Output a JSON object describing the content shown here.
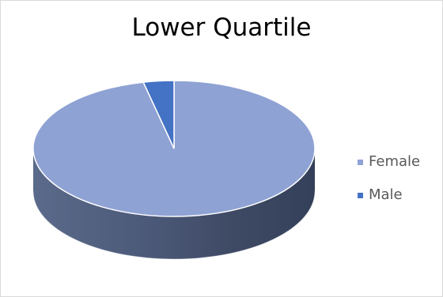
{
  "chart_data": {
    "type": "pie",
    "title": "Lower Quartile",
    "categories": [
      "Female",
      "Male"
    ],
    "values": [
      96.5,
      3.5
    ],
    "colors": [
      "#8FA2D4",
      "#4472C4"
    ],
    "legend_position": "right",
    "style": "3d"
  }
}
